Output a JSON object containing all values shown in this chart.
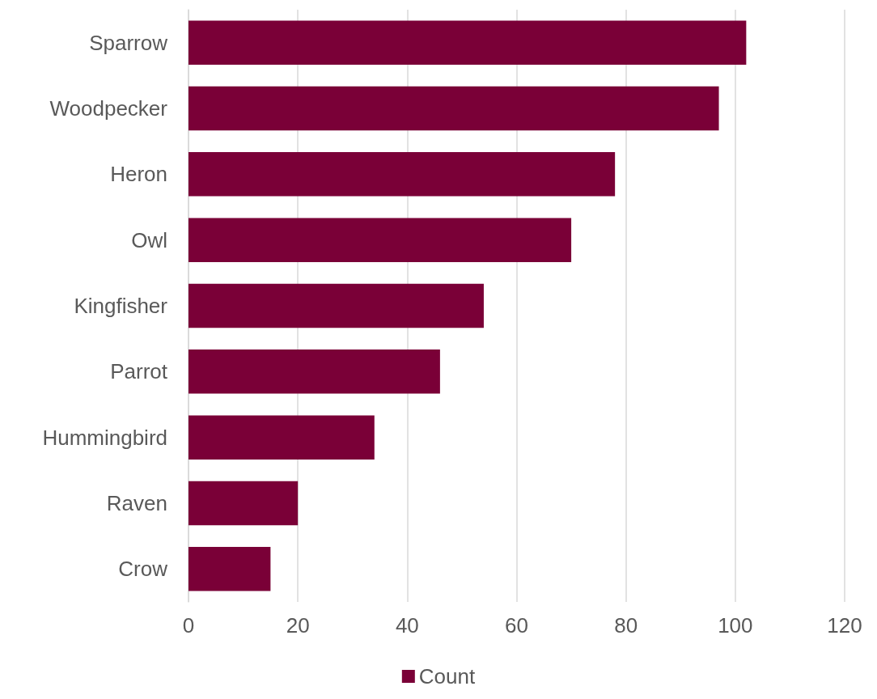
{
  "chart_data": {
    "type": "bar",
    "orientation": "horizontal",
    "categories": [
      "Sparrow",
      "Woodpecker",
      "Heron",
      "Owl",
      "Kingfisher",
      "Parrot",
      "Hummingbird",
      "Raven",
      "Crow"
    ],
    "series": [
      {
        "name": "Count",
        "color": "#7a0037",
        "values": [
          102,
          97,
          78,
          70,
          54,
          46,
          34,
          20,
          15
        ]
      }
    ],
    "xlim": [
      0,
      120
    ],
    "xticks": [
      0,
      20,
      40,
      60,
      80,
      100,
      120
    ],
    "grid": "x",
    "legend": "bottom"
  }
}
